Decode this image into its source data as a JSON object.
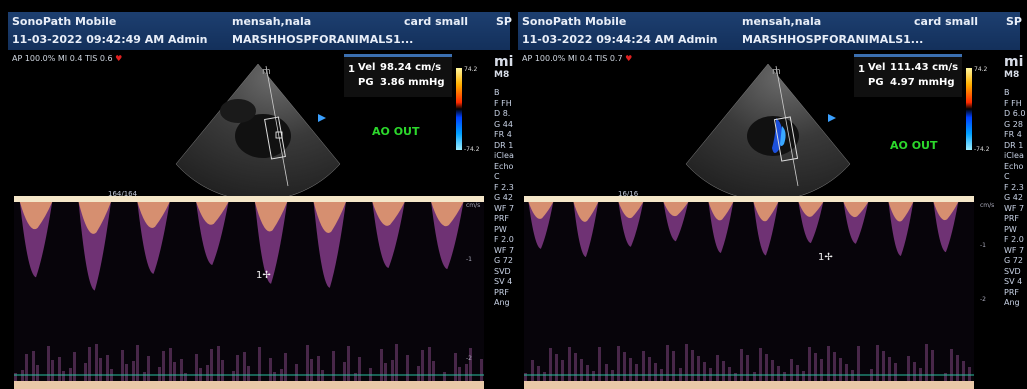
{
  "panels": [
    {
      "id": "left",
      "header": {
        "app_name": "SonoPath Mobile",
        "datetime_user": "11-03-2022 09:42:49 AM Admin",
        "patient_name": "mensah,nala",
        "hospital": "MARSHHOSPFORANIMALS1...",
        "probe": "card small",
        "extra": "SP"
      },
      "status": {
        "ap": "AP 100.0%",
        "mi": "MI 0.4",
        "tis": "TIS 0.6"
      },
      "measurements": {
        "index": "1",
        "vel_label": "Vel",
        "vel_value": "98.24 cm/s",
        "pg_label": "PG",
        "pg_value": "3.86 mmHg"
      },
      "color_scale": {
        "top": "74.2",
        "bottom": "-74.2"
      },
      "annotation": "AO OUT",
      "side_title": "mi",
      "side_sub": "M8",
      "side_params": "B\nF FH\nD 8.\nG 44\nFR 4\nDR 1\niClea\nEcho\nC\nF 2.3\nG 42\nWF 7\nPRF\nPW\nF 2.0\nWF 7\nG 72\nSVD\nSV 4\nPRF\nAng",
      "zoom": "164/164",
      "cursor_label": "1",
      "scale_labels": {
        "top": "cm/s",
        "m1": "-1",
        "m2": "-2"
      }
    },
    {
      "id": "right",
      "header": {
        "app_name": "SonoPath Mobile",
        "datetime_user": "11-03-2022 09:44:24 AM Admin",
        "patient_name": "mensah,nala",
        "hospital": "MARSHHOSPFORANIMALS1...",
        "probe": "card small",
        "extra": "SP"
      },
      "status": {
        "ap": "AP 100.0%",
        "mi": "MI 0.4",
        "tis": "TIS 0.7"
      },
      "measurements": {
        "index": "1",
        "vel_label": "Vel",
        "vel_value": "111.43 cm/s",
        "pg_label": "PG",
        "pg_value": "4.97 mmHg"
      },
      "color_scale": {
        "top": "74.2",
        "bottom": "-74.2"
      },
      "annotation": "AO OUT",
      "side_title": "mi",
      "side_sub": "M8",
      "side_params": "B\nF FH\nD 6.0\nG 28\nFR 4\nDR 1\niClea\nEcho\nC\nF 2.3\nG 42\nWF 7\nPRF\nPW\nF 2.0\nWF 7\nG 72\nSVD\nSV 4\nPRF\nAng",
      "zoom": "16/16",
      "cursor_label": "1",
      "scale_labels": {
        "top": "cm/s",
        "m1": "-1",
        "m2": "-2"
      }
    }
  ],
  "colors": {
    "header_bg": "#13305b",
    "annotation": "#2cd82c",
    "heart": "#e02020"
  },
  "icons": [
    "heart-icon",
    "orientation-marker-icon",
    "cursor-cross-icon"
  ]
}
